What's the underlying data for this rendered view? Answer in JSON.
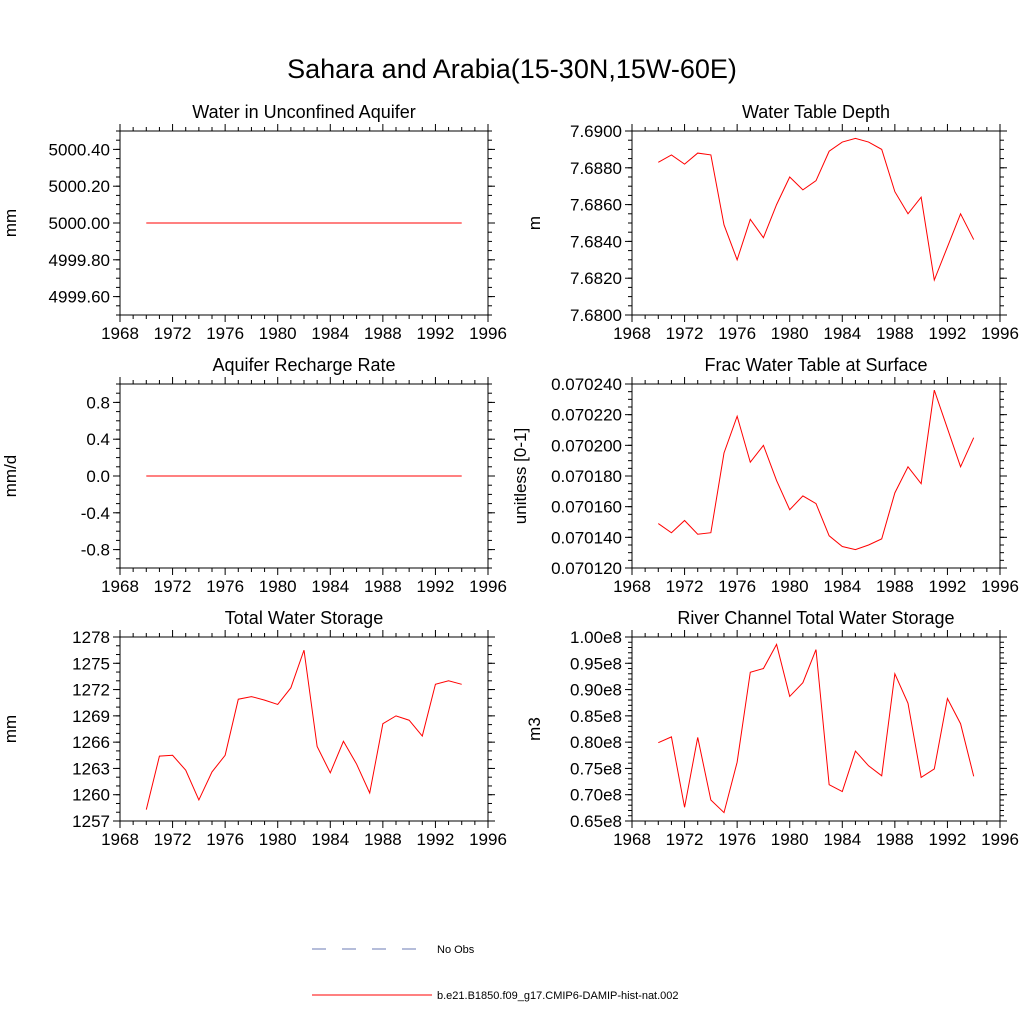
{
  "figure": {
    "title": "Sahara and Arabia(15-30N,15W-60E)"
  },
  "legend": {
    "obs_label": "No Obs",
    "obs_color": "#6b7bb5",
    "model_label": "b.e21.B1850.f09_g17.CMIP6-DAMIP-hist-nat.002",
    "model_color": "#ff0000"
  },
  "chart_data": [
    {
      "type": "line",
      "title": "Water in Unconfined Aquifer",
      "ylabel": "mm",
      "xlim": [
        1968,
        1996
      ],
      "xticks": [
        1968,
        1972,
        1976,
        1980,
        1984,
        1988,
        1992,
        1996
      ],
      "ylim": [
        4999.5,
        5000.5
      ],
      "yticks": [
        4999.6,
        4999.8,
        5000.0,
        5000.2,
        5000.4
      ],
      "ytick_labels": [
        "4999.60",
        "4999.80",
        "5000.00",
        "5000.20",
        "5000.40"
      ],
      "y_minor": [
        4999.5,
        4999.55,
        4999.6,
        4999.65,
        4999.7,
        4999.75,
        4999.8,
        4999.85,
        4999.9,
        4999.95,
        5000.0,
        5000.05,
        5000.1,
        5000.15,
        5000.2,
        5000.25,
        5000.3,
        5000.35,
        5000.4,
        5000.45,
        5000.5
      ],
      "series": [
        {
          "color": "#ff0000",
          "x": [
            1970,
            1994
          ],
          "values": [
            5000.0,
            5000.0
          ]
        }
      ]
    },
    {
      "type": "line",
      "title": "Water Table Depth",
      "ylabel": "m",
      "xlim": [
        1968,
        1996
      ],
      "xticks": [
        1968,
        1972,
        1976,
        1980,
        1984,
        1988,
        1992,
        1996
      ],
      "ylim": [
        7.68,
        7.69
      ],
      "yticks": [
        7.68,
        7.682,
        7.684,
        7.686,
        7.688,
        7.69
      ],
      "ytick_labels": [
        "7.6800",
        "7.6820",
        "7.6840",
        "7.6860",
        "7.6880",
        "7.6900"
      ],
      "y_minor": [
        7.68,
        7.6805,
        7.681,
        7.6815,
        7.682,
        7.6825,
        7.683,
        7.6835,
        7.684,
        7.6845,
        7.685,
        7.6855,
        7.686,
        7.6865,
        7.687,
        7.6875,
        7.688,
        7.6885,
        7.689,
        7.6895,
        7.69
      ],
      "series": [
        {
          "color": "#ff0000",
          "x": [
            1970,
            1971,
            1972,
            1973,
            1974,
            1975,
            1976,
            1977,
            1978,
            1979,
            1980,
            1981,
            1982,
            1983,
            1984,
            1985,
            1986,
            1987,
            1988,
            1989,
            1990,
            1991,
            1992,
            1993,
            1994
          ],
          "values": [
            7.6883,
            7.6887,
            7.6882,
            7.6888,
            7.6887,
            7.6849,
            7.683,
            7.6852,
            7.6842,
            7.686,
            7.6875,
            7.6868,
            7.6873,
            7.6889,
            7.6894,
            7.6896,
            7.6894,
            7.689,
            7.6867,
            7.6855,
            7.6864,
            7.6819,
            7.6837,
            7.6855,
            7.6841
          ]
        }
      ]
    },
    {
      "type": "line",
      "title": "Aquifer Recharge Rate",
      "ylabel": "mm/d",
      "xlim": [
        1968,
        1996
      ],
      "xticks": [
        1968,
        1972,
        1976,
        1980,
        1984,
        1988,
        1992,
        1996
      ],
      "ylim": [
        -1.0,
        1.0
      ],
      "yticks": [
        -0.8,
        -0.4,
        0.0,
        0.4,
        0.8
      ],
      "ytick_labels": [
        "-0.8",
        "-0.4",
        "0.0",
        "0.4",
        "0.8"
      ],
      "y_minor": [
        -1.0,
        -0.9,
        -0.8,
        -0.7,
        -0.6,
        -0.5,
        -0.4,
        -0.3,
        -0.2,
        -0.1,
        0.0,
        0.1,
        0.2,
        0.3,
        0.4,
        0.5,
        0.6,
        0.7,
        0.8,
        0.9,
        1.0
      ],
      "series": [
        {
          "color": "#ff0000",
          "x": [
            1970,
            1994
          ],
          "values": [
            0.0,
            0.0
          ]
        }
      ]
    },
    {
      "type": "line",
      "title": "Frac Water Table at Surface",
      "ylabel": "unitless [0-1]",
      "xlim": [
        1968,
        1996
      ],
      "xticks": [
        1968,
        1972,
        1976,
        1980,
        1984,
        1988,
        1992,
        1996
      ],
      "ylim": [
        0.07012,
        0.07024
      ],
      "yticks": [
        0.07012,
        0.07014,
        0.07016,
        0.07018,
        0.0702,
        0.07022,
        0.07024
      ],
      "ytick_labels": [
        "0.070120",
        "0.070140",
        "0.070160",
        "0.070180",
        "0.070200",
        "0.070220",
        "0.070240"
      ],
      "y_minor": [
        0.07012,
        0.070125,
        0.07013,
        0.070135,
        0.07014,
        0.070145,
        0.07015,
        0.070155,
        0.07016,
        0.070165,
        0.07017,
        0.070175,
        0.07018,
        0.070185,
        0.07019,
        0.070195,
        0.0702,
        0.070205,
        0.07021,
        0.070215,
        0.07022,
        0.070225,
        0.07023,
        0.070235,
        0.07024
      ],
      "series": [
        {
          "color": "#ff0000",
          "x": [
            1970,
            1971,
            1972,
            1973,
            1974,
            1975,
            1976,
            1977,
            1978,
            1979,
            1980,
            1981,
            1982,
            1983,
            1984,
            1985,
            1986,
            1987,
            1988,
            1989,
            1990,
            1991,
            1992,
            1993,
            1994
          ],
          "values": [
            0.070149,
            0.070143,
            0.070151,
            0.070142,
            0.070143,
            0.070195,
            0.070219,
            0.070189,
            0.0702,
            0.070177,
            0.070158,
            0.070167,
            0.070162,
            0.070141,
            0.070134,
            0.070132,
            0.070135,
            0.070139,
            0.070169,
            0.070186,
            0.070175,
            0.070236,
            0.070211,
            0.070186,
            0.070205
          ]
        }
      ]
    },
    {
      "type": "line",
      "title": "Total Water Storage",
      "ylabel": "mm",
      "xlim": [
        1968,
        1996
      ],
      "xticks": [
        1968,
        1972,
        1976,
        1980,
        1984,
        1988,
        1992,
        1996
      ],
      "ylim": [
        1257,
        1278
      ],
      "yticks": [
        1257,
        1260,
        1263,
        1266,
        1269,
        1272,
        1275,
        1278
      ],
      "ytick_labels": [
        "1257",
        "1260",
        "1263",
        "1266",
        "1269",
        "1272",
        "1275",
        "1278"
      ],
      "y_minor": [
        1257,
        1258,
        1259,
        1260,
        1261,
        1262,
        1263,
        1264,
        1265,
        1266,
        1267,
        1268,
        1269,
        1270,
        1271,
        1272,
        1273,
        1274,
        1275,
        1276,
        1277,
        1278
      ],
      "series": [
        {
          "color": "#ff0000",
          "x": [
            1970,
            1971,
            1972,
            1973,
            1974,
            1975,
            1976,
            1977,
            1978,
            1979,
            1980,
            1981,
            1982,
            1983,
            1984,
            1985,
            1986,
            1987,
            1988,
            1989,
            1990,
            1991,
            1992,
            1993,
            1994
          ],
          "values": [
            1258.3,
            1264.4,
            1264.5,
            1262.8,
            1259.4,
            1262.6,
            1264.5,
            1270.9,
            1271.2,
            1270.8,
            1270.3,
            1272.2,
            1276.5,
            1265.5,
            1262.5,
            1266.1,
            1263.5,
            1260.2,
            1268.1,
            1269.0,
            1268.5,
            1266.7,
            1272.6,
            1273.0,
            1272.6
          ]
        }
      ]
    },
    {
      "type": "line",
      "title": "River Channel Total Water Storage",
      "ylabel": "m3",
      "xlim": [
        1968,
        1996
      ],
      "xticks": [
        1968,
        1972,
        1976,
        1980,
        1984,
        1988,
        1992,
        1996
      ],
      "ylim": [
        65000000,
        100000000
      ],
      "yticks": [
        65000000,
        70000000,
        75000000,
        80000000,
        85000000,
        90000000,
        95000000,
        100000000
      ],
      "ytick_labels": [
        "0.65e8",
        "0.70e8",
        "0.75e8",
        "0.80e8",
        "0.85e8",
        "0.90e8",
        "0.95e8",
        "1.00e8"
      ],
      "y_minor": [
        65000000,
        66000000,
        67000000,
        68000000,
        69000000,
        70000000,
        71000000,
        72000000,
        73000000,
        74000000,
        75000000,
        76000000,
        77000000,
        78000000,
        79000000,
        80000000,
        81000000,
        82000000,
        83000000,
        84000000,
        85000000,
        86000000,
        87000000,
        88000000,
        89000000,
        90000000,
        91000000,
        92000000,
        93000000,
        94000000,
        95000000,
        96000000,
        97000000,
        98000000,
        99000000,
        100000000
      ],
      "series": [
        {
          "color": "#ff0000",
          "x": [
            1970,
            1971,
            1972,
            1973,
            1974,
            1975,
            1976,
            1977,
            1978,
            1979,
            1980,
            1981,
            1982,
            1983,
            1984,
            1985,
            1986,
            1987,
            1988,
            1989,
            1990,
            1991,
            1992,
            1993,
            1994
          ],
          "values": [
            79900000,
            81000000,
            67600000,
            80900000,
            69000000,
            66600000,
            76200000,
            93300000,
            94000000,
            98600000,
            88700000,
            91300000,
            97600000,
            71900000,
            70600000,
            78300000,
            75500000,
            73600000,
            93000000,
            87400000,
            73300000,
            74900000,
            88300000,
            83500000,
            73500000
          ]
        }
      ]
    }
  ]
}
